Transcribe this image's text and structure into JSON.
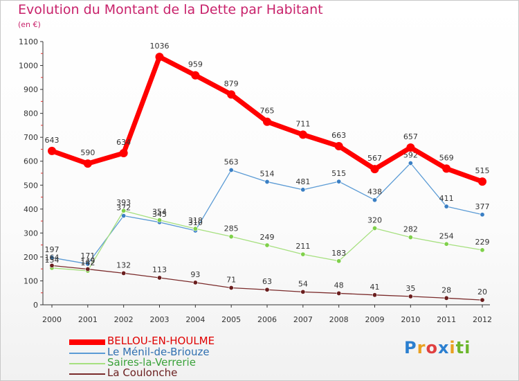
{
  "header": {
    "title": "Evolution du Montant de la Dette par Habitant",
    "unit": "(en €)"
  },
  "logo": {
    "text": "Proxiti",
    "colors": [
      "#2b7fd0",
      "#e8a020",
      "#e04040",
      "#6cb62c"
    ]
  },
  "chart_data": {
    "type": "line",
    "title": "Evolution du Montant de la Dette par Habitant",
    "subtitle": "(en €)",
    "xlabel": "",
    "ylabel": "",
    "categories": [
      "2000",
      "2001",
      "2002",
      "2003",
      "2004",
      "2005",
      "2006",
      "2007",
      "2008",
      "2009",
      "2010",
      "2011",
      "2012"
    ],
    "ylim": [
      0,
      1100
    ],
    "yticks": [
      0,
      100,
      200,
      300,
      400,
      500,
      600,
      700,
      800,
      900,
      1000,
      1100
    ],
    "grid": false,
    "legend_position": "bottom-left",
    "series": [
      {
        "name": "BELLOU-EN-HOULME",
        "color": "#ff0000",
        "emphasis": true,
        "values": [
          643,
          590,
          634,
          1036,
          959,
          879,
          765,
          711,
          663,
          567,
          657,
          569,
          515
        ]
      },
      {
        "name": "Le Ménil-de-Briouze",
        "color": "#5b9bd5",
        "point_color": "#3a7fc4",
        "values": [
          197,
          171,
          372,
          345,
          310,
          563,
          514,
          481,
          515,
          438,
          592,
          411,
          377
        ]
      },
      {
        "name": "Saires-la-Verrerie",
        "color": "#a6e07f",
        "point_color": "#7fd04a",
        "values": [
          154,
          142,
          393,
          354,
          318,
          285,
          249,
          211,
          183,
          320,
          282,
          254,
          229
        ]
      },
      {
        "name": "La Coulonche",
        "color": "#7a2a2a",
        "point_color": "#6a1e1e",
        "values": [
          164,
          149,
          132,
          113,
          93,
          71,
          63,
          54,
          48,
          41,
          35,
          28,
          20
        ]
      }
    ]
  }
}
